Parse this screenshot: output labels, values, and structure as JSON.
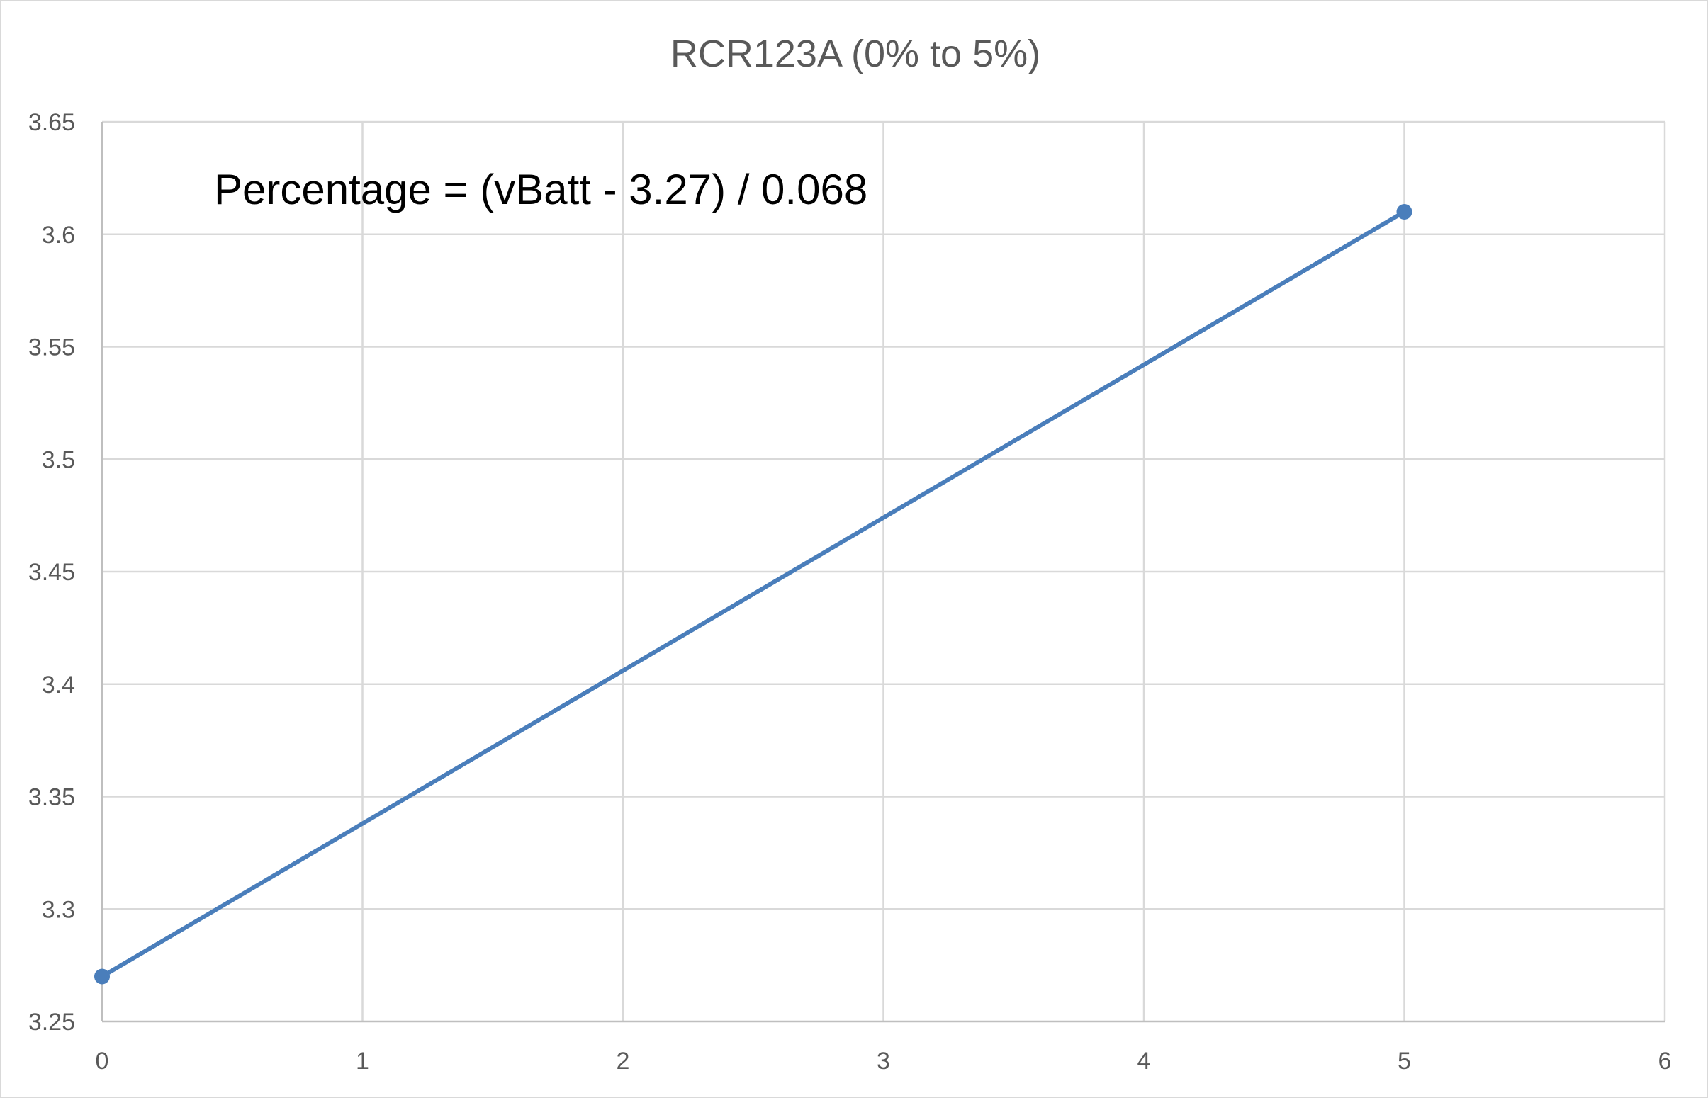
{
  "chart_data": {
    "type": "line",
    "title": "RCR123A (0% to 5%)",
    "xlabel": "",
    "ylabel": "",
    "xlim": [
      0,
      6
    ],
    "ylim": [
      3.25,
      3.65
    ],
    "x_ticks": [
      "0",
      "1",
      "2",
      "3",
      "4",
      "5",
      "6"
    ],
    "y_ticks": [
      "3.25",
      "3.3",
      "3.35",
      "3.4",
      "3.45",
      "3.5",
      "3.55",
      "3.6",
      "3.65"
    ],
    "grid": true,
    "legend": "none",
    "annotation": "Percentage = (vBatt - 3.27) / 0.068",
    "series": [
      {
        "color": "#4a7ebb",
        "points": [
          {
            "x": 0,
            "y": 3.27
          },
          {
            "x": 5,
            "y": 3.61
          }
        ]
      }
    ]
  }
}
